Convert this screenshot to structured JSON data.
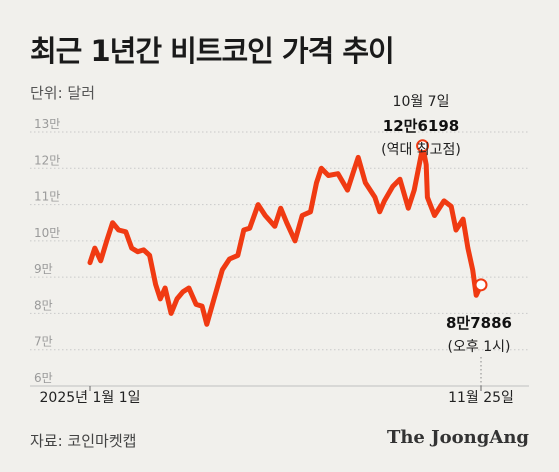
{
  "header": {
    "title": "최근 1년간 비트코인 가격 추이",
    "unit": "단위: 달러"
  },
  "footer": {
    "source": "자료: 코인마켓캡",
    "brand": "The JoongAng"
  },
  "colors": {
    "line": "#f03a12",
    "grid": "#c9c9c9",
    "background": "#f1f0ec"
  },
  "chart_data": {
    "type": "line",
    "title": "최근 1년간 비트코인 가격 추이",
    "ylabel": "단위: 달러",
    "xlabel": "",
    "ylim": [
      60000,
      130000
    ],
    "yticks": [
      60000,
      70000,
      80000,
      90000,
      100000,
      110000,
      120000,
      130000
    ],
    "ytick_labels": [
      "6만",
      "7만",
      "8만",
      "9만",
      "10만",
      "11만",
      "12만",
      "13만"
    ],
    "x_range": [
      "2025-01-01",
      "2025-11-25"
    ],
    "xtick_labels": [
      "2025년 1월 1일",
      "11월 25일"
    ],
    "grid": true,
    "series": [
      {
        "x": [
          "2025-01-01",
          "2025-01-05",
          "2025-01-10",
          "2025-01-15",
          "2025-01-20",
          "2025-01-25",
          "2025-01-31",
          "2025-02-05",
          "2025-02-10",
          "2025-02-15",
          "2025-02-20",
          "2025-02-25",
          "2025-03-01",
          "2025-03-05",
          "2025-03-10",
          "2025-03-15",
          "2025-03-20",
          "2025-03-25",
          "2025-03-31",
          "2025-04-05",
          "2025-04-09",
          "2025-04-15",
          "2025-04-22",
          "2025-04-28",
          "2025-05-05",
          "2025-05-10",
          "2025-05-15",
          "2025-05-22",
          "2025-05-28",
          "2025-06-05",
          "2025-06-10",
          "2025-06-15",
          "2025-06-22",
          "2025-06-28",
          "2025-07-05",
          "2025-07-10",
          "2025-07-14",
          "2025-07-20",
          "2025-07-28",
          "2025-08-05",
          "2025-08-10",
          "2025-08-14",
          "2025-08-20",
          "2025-08-28",
          "2025-09-01",
          "2025-09-05",
          "2025-09-12",
          "2025-09-18",
          "2025-09-25",
          "2025-09-30",
          "2025-10-06",
          "2025-10-07",
          "2025-10-10",
          "2025-10-11",
          "2025-10-17",
          "2025-10-25",
          "2025-10-31",
          "2025-11-04",
          "2025-11-10",
          "2025-11-14",
          "2025-11-18",
          "2025-11-21",
          "2025-11-25"
        ],
        "values": [
          94000,
          98000,
          94500,
          100000,
          105000,
          103000,
          102500,
          98000,
          97000,
          97500,
          96000,
          88000,
          84000,
          87000,
          80000,
          84000,
          86000,
          87000,
          82500,
          82000,
          77000,
          84000,
          92000,
          95000,
          96000,
          103000,
          103500,
          110000,
          107000,
          104000,
          109000,
          105000,
          100000,
          107000,
          108000,
          116000,
          120000,
          118000,
          118500,
          114000,
          119000,
          123000,
          116000,
          112000,
          108000,
          111000,
          115000,
          117000,
          109000,
          114000,
          124000,
          126198,
          121000,
          112000,
          107000,
          111000,
          109500,
          103000,
          106000,
          98000,
          92000,
          85000,
          87886
        ]
      }
    ],
    "annotations": [
      {
        "date": "10월 7일",
        "value_label": "12만6198",
        "note": "(역대 최고점)",
        "x": "2025-10-07",
        "y": 126198
      },
      {
        "date": "",
        "value_label": "8만7886",
        "note": "(오후 1시)",
        "x": "2025-11-25",
        "y": 87886
      }
    ]
  }
}
